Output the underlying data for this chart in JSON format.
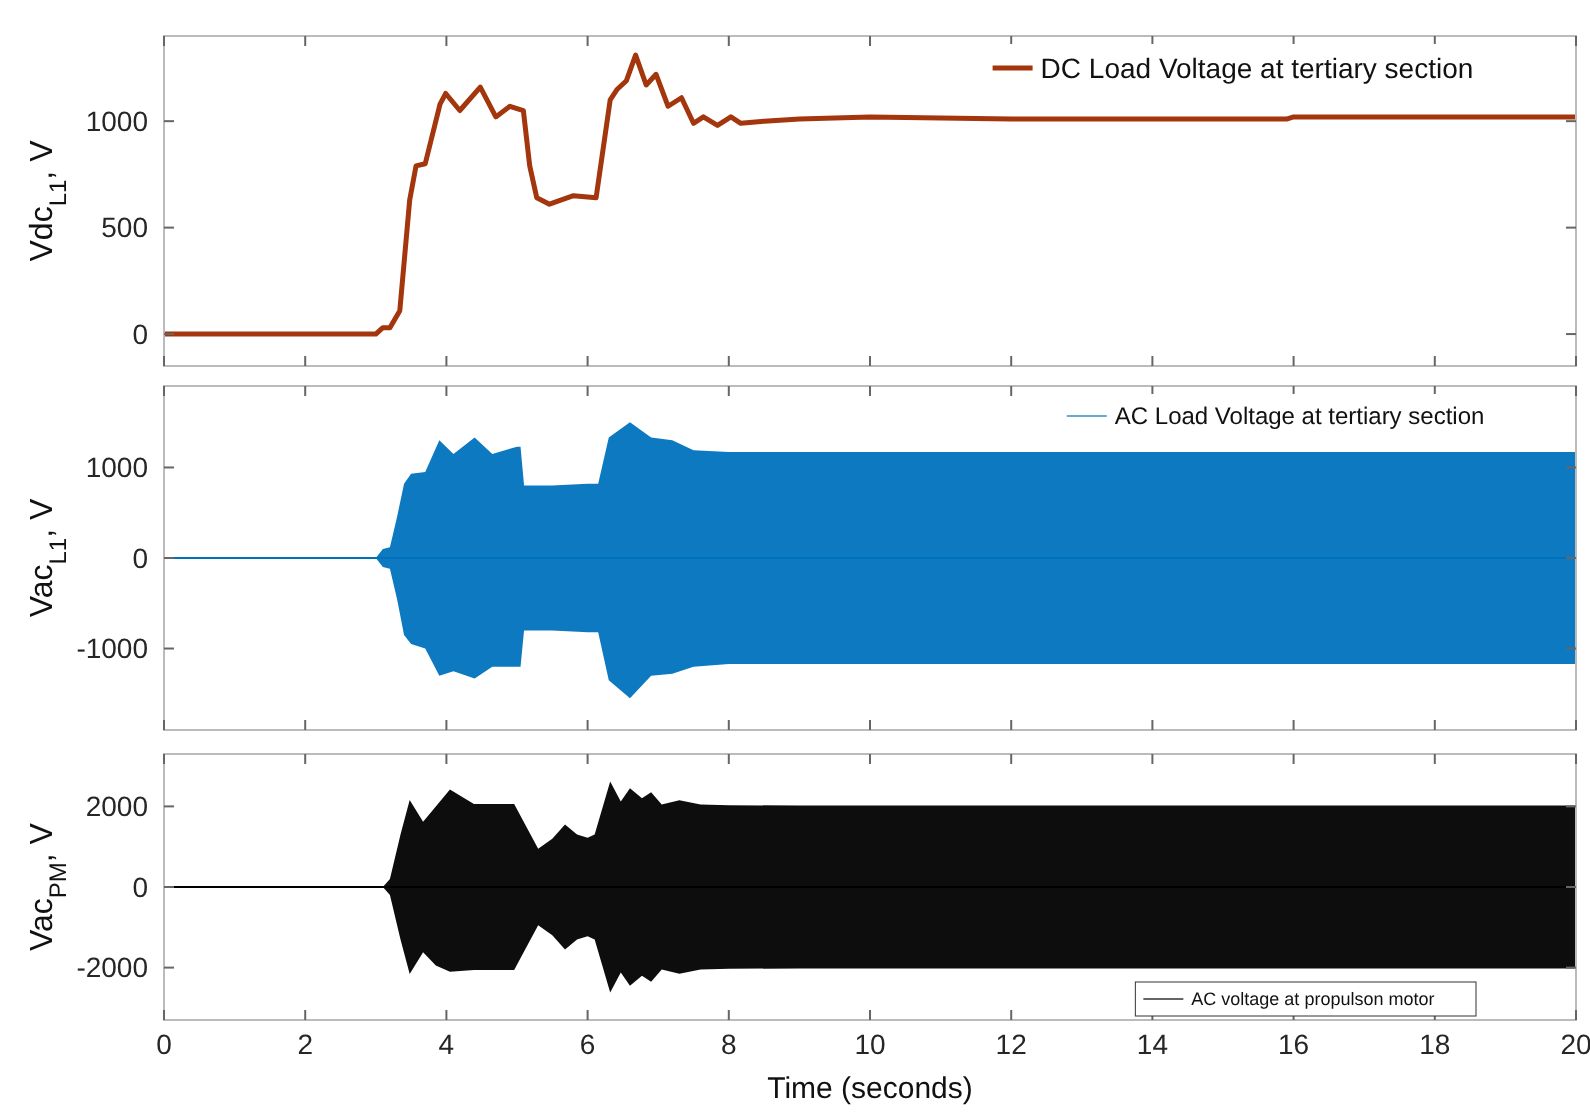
{
  "chart_data": [
    {
      "type": "line",
      "ylabel": "Vdc$_{L1}$, V",
      "x": [
        0,
        3.0,
        3.1,
        3.2,
        3.34,
        3.48,
        3.57,
        3.7,
        3.91,
        3.99,
        4.19,
        4.48,
        4.7,
        4.9,
        5.09,
        5.18,
        5.28,
        5.46,
        5.8,
        6.12,
        6.32,
        6.42,
        6.55,
        6.68,
        6.83,
        6.97,
        7.14,
        7.33,
        7.5,
        7.64,
        7.84,
        8.03,
        8.17,
        8.5,
        9,
        10,
        12,
        14,
        15.9,
        16,
        18,
        20
      ],
      "xlim": [
        0,
        20
      ],
      "xticks": [
        0,
        2,
        4,
        6,
        8,
        10,
        12,
        14,
        16,
        18,
        20
      ],
      "ylim": [
        -150,
        1400
      ],
      "yticks": [
        0,
        500,
        1000
      ],
      "legend": "top right",
      "tick_labels": "y",
      "series": [
        {
          "name": "DC Load Voltage at tertiary section",
          "color": "#a3360c",
          "values": [
            0,
            0,
            30,
            30,
            110,
            630,
            790,
            800,
            1080,
            1130,
            1050,
            1160,
            1020,
            1070,
            1050,
            790,
            640,
            610,
            650,
            640,
            1100,
            1150,
            1190,
            1310,
            1170,
            1220,
            1070,
            1110,
            990,
            1020,
            980,
            1020,
            990,
            1000,
            1010,
            1020,
            1010,
            1010,
            1010,
            1020,
            1020,
            1020
          ]
        }
      ]
    },
    {
      "type": "line",
      "ylabel": "Vac$_{L1}$, V",
      "x": [
        0,
        3.0,
        3.1,
        3.2,
        3.3,
        3.4,
        3.5,
        3.7,
        3.9,
        4.1,
        4.4,
        4.65,
        5.0,
        5.05,
        5.1,
        5.5,
        6.0,
        6.15,
        6.3,
        6.6,
        6.9,
        7.2,
        7.5,
        8,
        9,
        10,
        12,
        14,
        16,
        18,
        20
      ],
      "xlim": [
        0,
        20
      ],
      "xticks": [
        0,
        2,
        4,
        6,
        8,
        10,
        12,
        14,
        16,
        18,
        20
      ],
      "ylim": [
        -1900,
        1900
      ],
      "yticks": [
        -1000,
        0,
        1000
      ],
      "legend": "top right",
      "tick_labels": "y",
      "series": [
        {
          "name": "AC Load Voltage at tertiary section",
          "color": "#0072bd",
          "values": [
            0,
            0,
            0,
            0,
            0,
            0,
            0,
            0,
            0,
            0,
            0,
            0,
            0,
            0,
            0,
            0,
            0,
            0,
            0,
            0,
            0,
            0,
            0,
            0,
            0,
            0,
            0,
            0,
            0,
            0,
            0
          ],
          "upper": [
            0,
            0,
            100,
            120,
            450,
            820,
            930,
            950,
            1300,
            1150,
            1330,
            1150,
            1230,
            1230,
            800,
            800,
            820,
            820,
            1330,
            1500,
            1330,
            1300,
            1190,
            1170,
            1170,
            1170,
            1170,
            1170,
            1170,
            1170,
            1170
          ],
          "lower": [
            0,
            0,
            -100,
            -120,
            -450,
            -850,
            -950,
            -1000,
            -1300,
            -1250,
            -1330,
            -1200,
            -1200,
            -1200,
            -800,
            -800,
            -820,
            -820,
            -1350,
            -1550,
            -1300,
            -1280,
            -1200,
            -1170,
            -1170,
            -1170,
            -1170,
            -1170,
            -1170,
            -1170,
            -1170
          ]
        }
      ]
    },
    {
      "type": "line",
      "ylabel": "Vac$_{PM}$, V",
      "xlabel": "Time (seconds)",
      "x": [
        0,
        3.1,
        3.2,
        3.35,
        3.48,
        3.67,
        3.85,
        4.05,
        4.39,
        4.96,
        5.1,
        5.3,
        5.5,
        5.68,
        5.85,
        6.0,
        6.1,
        6.32,
        6.47,
        6.6,
        6.77,
        6.9,
        7.05,
        7.3,
        7.6,
        8,
        9,
        10,
        12,
        14,
        16,
        18,
        20
      ],
      "xlim": [
        0,
        20
      ],
      "xticks": [
        0,
        2,
        4,
        6,
        8,
        10,
        12,
        14,
        16,
        18,
        20
      ],
      "ylim": [
        -3300,
        3300
      ],
      "yticks": [
        -2000,
        0,
        2000
      ],
      "legend": "bottom right",
      "series": [
        {
          "name": "AC voltage at propulson motor",
          "color": "#000000",
          "values": [
            0,
            0,
            0,
            0,
            0,
            0,
            0,
            0,
            0,
            0,
            0,
            0,
            0,
            0,
            0,
            0,
            0,
            0,
            0,
            0,
            0,
            0,
            0,
            0,
            0,
            0,
            0,
            0,
            0,
            0,
            0,
            0,
            0
          ],
          "upper": [
            0,
            0,
            200,
            1300,
            2160,
            1620,
            2000,
            2420,
            2060,
            2060,
            1600,
            950,
            1200,
            1550,
            1300,
            1220,
            1300,
            2620,
            2120,
            2450,
            2200,
            2350,
            2050,
            2150,
            2050,
            2030,
            2020,
            2020,
            2020,
            2020,
            2020,
            2020,
            2020
          ],
          "lower": [
            0,
            0,
            -200,
            -1300,
            -2160,
            -1620,
            -1950,
            -2100,
            -2060,
            -2060,
            -1600,
            -950,
            -1200,
            -1550,
            -1300,
            -1220,
            -1300,
            -2620,
            -2120,
            -2450,
            -2200,
            -2350,
            -2050,
            -2150,
            -2050,
            -2030,
            -2020,
            -2020,
            -2020,
            -2020,
            -2020,
            -2020,
            -2020
          ]
        }
      ]
    }
  ]
}
